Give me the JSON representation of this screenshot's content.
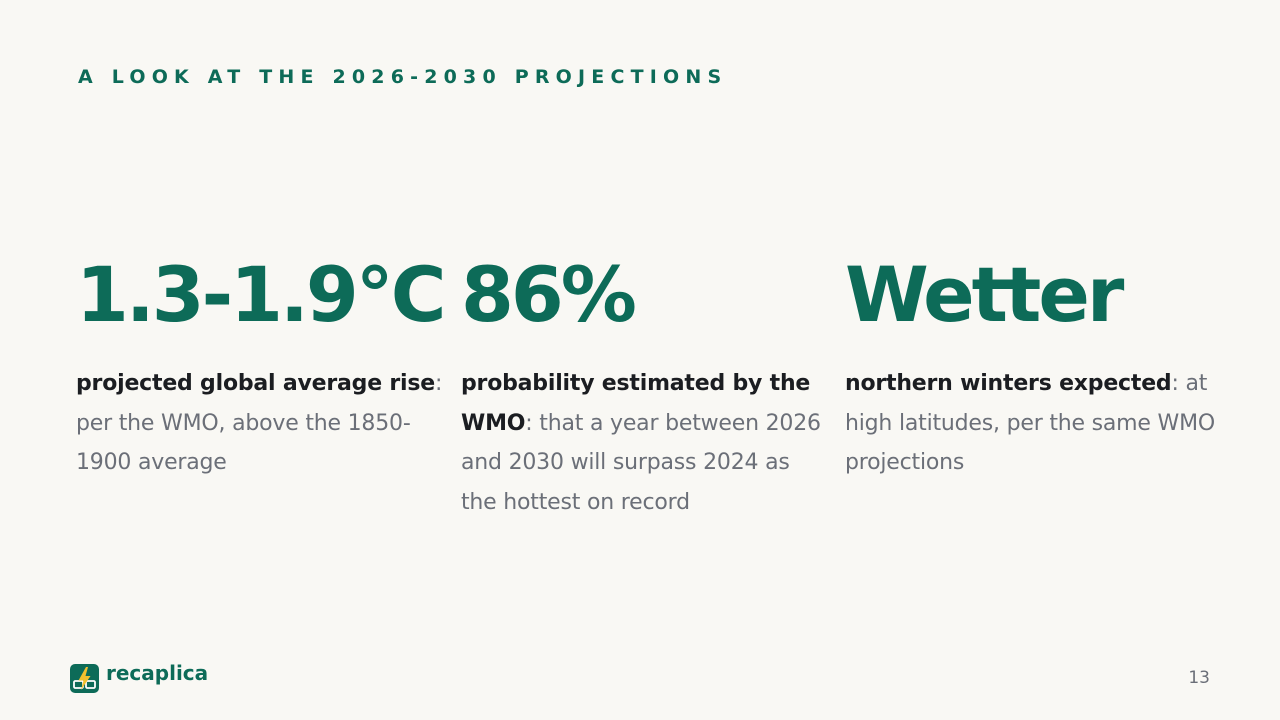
{
  "header": {
    "eyebrow": "A LOOK AT THE 2026-2030 PROJECTIONS"
  },
  "stats": [
    {
      "value": "1.3-1.9°C",
      "label_bold": "projected global average rise",
      "label_sep": ":",
      "label_rest": " per the WMO, above the 1850-1900 average"
    },
    {
      "value": "86%",
      "label_bold": "probability estimated by the WMO",
      "label_sep": ":",
      "label_rest": " that a year between 2026 and 2030 will surpass 2024 as the hottest on record"
    },
    {
      "value": "Wetter",
      "label_bold": "northern winters expected",
      "label_sep": ":",
      "label_rest": " at high latitudes, per the same WMO projections"
    }
  ],
  "footer": {
    "brand_name": "recaplica",
    "page_number": "13",
    "logo_icon": "book-lightning-icon"
  },
  "colors": {
    "accent": "#0d6b58",
    "background": "#f9f8f4",
    "text_strong": "#1b1d21",
    "text_muted": "#6b6f78",
    "logo_bolt": "#f2c12e"
  }
}
